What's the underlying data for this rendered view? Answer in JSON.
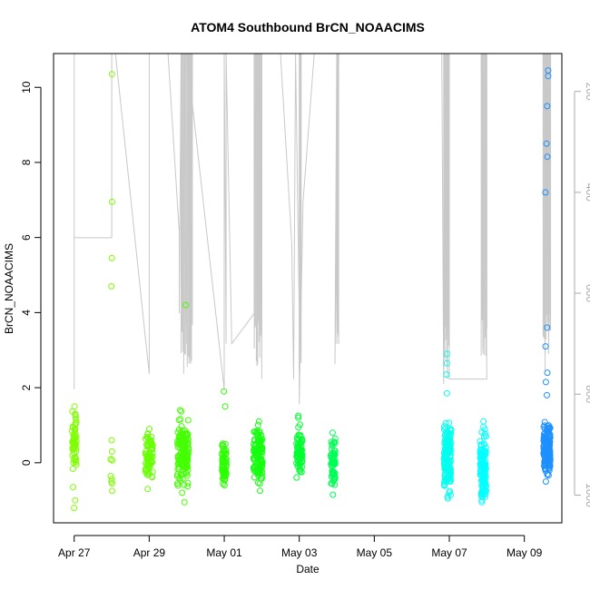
{
  "chart_data": {
    "type": "scatter",
    "title": "ATOM4 Southbound BrCN_NOAACIMS",
    "xlabel": "Date",
    "ylabel": "BrCN_NOAACIMS",
    "x_ticks": [
      "Apr 27",
      "Apr 29",
      "May 01",
      "May 03",
      "May 05",
      "May 07",
      "May 09"
    ],
    "x_tick_days": [
      0,
      2,
      4,
      6,
      8,
      10,
      12
    ],
    "xlim_days": [
      -0.55,
      13.0
    ],
    "y_ticks": [
      0,
      2,
      4,
      6,
      8,
      10
    ],
    "ylim": [
      -1.6,
      10.9
    ],
    "right_axis": {
      "ticks": [
        200,
        400,
        600,
        800,
        1000
      ],
      "lim": [
        1055,
        125
      ],
      "color": "#aaaaaa"
    },
    "grid": false,
    "legend": "none",
    "series": [
      {
        "color": "#7fff00",
        "day": 0.0,
        "spread": 0.06,
        "n": 55,
        "center": 0.55,
        "sd": 0.35,
        "extra": [
          -0.65,
          -1.0,
          -1.2,
          1.5,
          1.3
        ]
      },
      {
        "color": "#7fff00",
        "day": 1.0,
        "spread": 0.03,
        "n": 7,
        "center": 0.0,
        "sd": 0.35,
        "extra": [
          10.35,
          6.95,
          5.45,
          4.7,
          0.6,
          -0.5,
          0.3
        ]
      },
      {
        "color": "#66ff00",
        "day": 2.0,
        "spread": 0.1,
        "n": 70,
        "center": 0.15,
        "sd": 0.3,
        "extra": [
          -0.7,
          0.9
        ]
      },
      {
        "color": "#44ff00",
        "day": 2.9,
        "spread": 0.15,
        "n": 150,
        "center": 0.3,
        "sd": 0.4,
        "extra": [
          4.2,
          1.4,
          -1.05,
          -0.8
        ]
      },
      {
        "color": "#2bff00",
        "day": 4.0,
        "spread": 0.06,
        "n": 60,
        "center": 0.0,
        "sd": 0.3,
        "extra": [
          1.9,
          1.5,
          -0.6
        ]
      },
      {
        "color": "#14ff0e",
        "day": 4.9,
        "spread": 0.12,
        "n": 110,
        "center": 0.2,
        "sd": 0.35,
        "extra": [
          -0.75,
          1.1
        ]
      },
      {
        "color": "#00ff30",
        "day": 6.0,
        "spread": 0.08,
        "n": 80,
        "center": 0.2,
        "sd": 0.3,
        "extra": [
          1.2,
          1.25
        ]
      },
      {
        "color": "#00ff55",
        "day": 6.9,
        "spread": 0.06,
        "n": 60,
        "center": 0.0,
        "sd": 0.35,
        "extra": [
          -0.85,
          0.8
        ]
      },
      {
        "color": "#00ffee",
        "day": 9.95,
        "spread": 0.1,
        "n": 140,
        "center": 0.15,
        "sd": 0.45,
        "extra": [
          2.9,
          2.65,
          2.35,
          1.85,
          -0.95
        ]
      },
      {
        "color": "#00ffff",
        "day": 10.9,
        "spread": 0.08,
        "n": 120,
        "center": -0.1,
        "sd": 0.4,
        "extra": [
          1.1,
          -1.0
        ]
      },
      {
        "color": "#1e90ff",
        "day": 12.6,
        "spread": 0.09,
        "n": 170,
        "center": 0.4,
        "sd": 0.35,
        "extra": [
          10.45,
          10.3,
          9.5,
          8.5,
          8.15,
          7.2,
          3.6,
          3.1,
          2.4,
          2.15,
          1.8,
          -0.5
        ]
      }
    ]
  }
}
